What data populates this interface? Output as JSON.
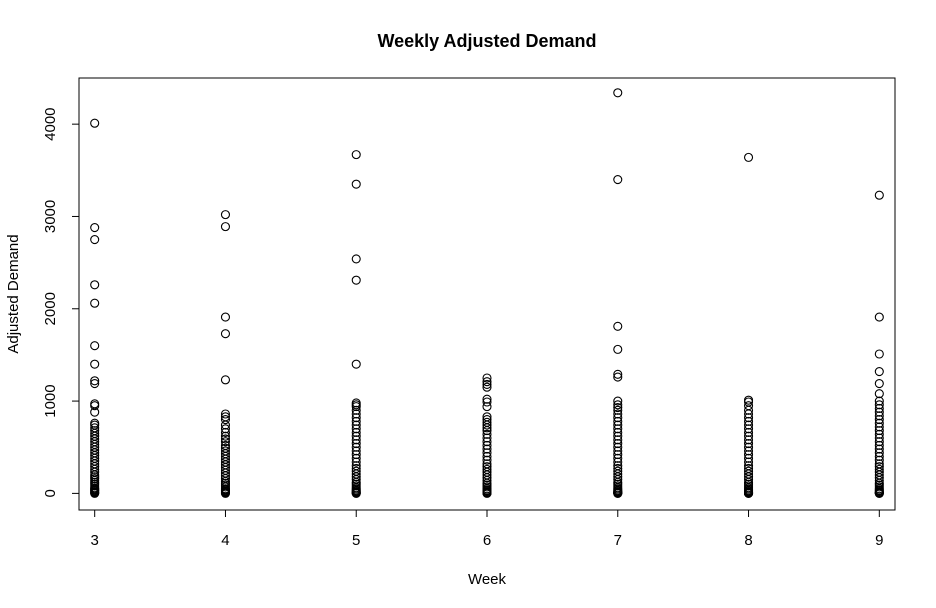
{
  "chart_data": {
    "type": "scatter",
    "title": "Weekly Adjusted Demand",
    "xlabel": "Week",
    "ylabel": "Adjusted Demand",
    "x_ticks": [
      "3",
      "4",
      "5",
      "6",
      "7",
      "8",
      "9"
    ],
    "y_ticks": [
      "0",
      "1000",
      "2000",
      "3000",
      "4000"
    ],
    "xlim": [
      2.88,
      9.12
    ],
    "ylim": [
      -180,
      4500
    ],
    "grid": false,
    "legend": false,
    "series": [
      {
        "x": [
          3,
          3,
          3,
          3,
          3,
          3,
          3,
          3,
          3,
          3,
          3,
          3,
          3,
          3,
          3,
          3,
          3,
          3,
          3,
          3,
          3,
          3,
          3,
          3,
          3,
          3,
          3,
          3,
          3,
          3,
          3,
          3,
          3,
          3,
          3,
          3,
          3,
          3,
          3,
          3,
          3,
          3,
          3,
          3,
          3,
          3,
          4,
          4,
          4,
          4,
          4,
          4,
          4,
          4,
          4,
          4,
          4,
          4,
          4,
          4,
          4,
          4,
          4,
          4,
          4,
          4,
          4,
          4,
          4,
          4,
          4,
          4,
          4,
          4,
          4,
          4,
          4,
          4,
          4,
          4,
          4,
          4,
          4,
          4,
          5,
          5,
          5,
          5,
          5,
          5,
          5,
          5,
          5,
          5,
          5,
          5,
          5,
          5,
          5,
          5,
          5,
          5,
          5,
          5,
          5,
          5,
          5,
          5,
          5,
          5,
          5,
          5,
          5,
          5,
          5,
          5,
          5,
          5,
          5,
          5,
          5,
          5,
          5,
          5,
          6,
          6,
          6,
          6,
          6,
          6,
          6,
          6,
          6,
          6,
          6,
          6,
          6,
          6,
          6,
          6,
          6,
          6,
          6,
          6,
          6,
          6,
          6,
          6,
          6,
          6,
          6,
          6,
          6,
          6,
          6,
          6,
          6,
          6,
          6,
          6,
          6,
          6,
          7,
          7,
          7,
          7,
          7,
          7,
          7,
          7,
          7,
          7,
          7,
          7,
          7,
          7,
          7,
          7,
          7,
          7,
          7,
          7,
          7,
          7,
          7,
          7,
          7,
          7,
          7,
          7,
          7,
          7,
          7,
          7,
          7,
          7,
          7,
          7,
          7,
          7,
          7,
          7,
          7,
          7,
          7,
          8,
          8,
          8,
          8,
          8,
          8,
          8,
          8,
          8,
          8,
          8,
          8,
          8,
          8,
          8,
          8,
          8,
          8,
          8,
          8,
          8,
          8,
          8,
          8,
          8,
          8,
          8,
          8,
          8,
          8,
          8,
          8,
          8,
          8,
          8,
          8,
          8,
          8,
          8,
          9,
          9,
          9,
          9,
          9,
          9,
          9,
          9,
          9,
          9,
          9,
          9,
          9,
          9,
          9,
          9,
          9,
          9,
          9,
          9,
          9,
          9,
          9,
          9,
          9,
          9,
          9,
          9,
          9,
          9,
          9,
          9,
          9,
          9,
          9,
          9,
          9,
          9,
          9,
          9,
          9,
          9
        ],
        "y": [
          4010,
          2880,
          2750,
          2260,
          2060,
          1600,
          1400,
          1220,
          1190,
          970,
          950,
          880,
          760,
          740,
          710,
          680,
          650,
          620,
          590,
          560,
          530,
          500,
          470,
          440,
          410,
          380,
          350,
          320,
          290,
          260,
          230,
          200,
          180,
          160,
          140,
          120,
          100,
          80,
          60,
          50,
          40,
          30,
          20,
          10,
          5,
          0,
          3020,
          2890,
          1910,
          1730,
          1230,
          860,
          830,
          800,
          740,
          700,
          660,
          620,
          590,
          560,
          520,
          490,
          460,
          430,
          400,
          370,
          340,
          310,
          280,
          250,
          220,
          190,
          160,
          130,
          110,
          90,
          70,
          50,
          40,
          30,
          20,
          10,
          5,
          0,
          3670,
          3350,
          2540,
          2310,
          1400,
          980,
          960,
          940,
          900,
          860,
          820,
          780,
          740,
          700,
          660,
          620,
          580,
          540,
          500,
          460,
          420,
          380,
          340,
          300,
          270,
          240,
          210,
          180,
          150,
          120,
          100,
          80,
          60,
          45,
          30,
          20,
          12,
          6,
          2,
          0,
          1250,
          1210,
          1180,
          1150,
          1020,
          990,
          940,
          830,
          800,
          770,
          740,
          710,
          680,
          640,
          600,
          560,
          520,
          480,
          440,
          400,
          360,
          320,
          290,
          260,
          230,
          200,
          170,
          140,
          110,
          90,
          70,
          50,
          35,
          25,
          15,
          8,
          3,
          0,
          4340,
          3400,
          1810,
          1560,
          1290,
          1260,
          1000,
          960,
          930,
          900,
          860,
          820,
          780,
          740,
          700,
          660,
          620,
          580,
          540,
          500,
          460,
          420,
          380,
          340,
          300,
          270,
          240,
          210,
          180,
          150,
          120,
          100,
          80,
          60,
          45,
          30,
          20,
          12,
          8,
          5,
          3,
          1,
          0,
          3640,
          1010,
          990,
          950,
          900,
          860,
          820,
          780,
          740,
          700,
          660,
          620,
          580,
          540,
          500,
          460,
          420,
          380,
          340,
          300,
          270,
          240,
          210,
          180,
          150,
          120,
          100,
          80,
          60,
          45,
          30,
          20,
          12,
          8,
          5,
          3,
          2,
          1,
          0,
          3230,
          1910,
          1510,
          1320,
          1190,
          1080,
          1000,
          960,
          920,
          880,
          840,
          800,
          760,
          720,
          680,
          640,
          600,
          560,
          520,
          480,
          440,
          400,
          360,
          320,
          290,
          260,
          230,
          200,
          170,
          140,
          110,
          90,
          70,
          50,
          35,
          25,
          15,
          10,
          6,
          3,
          1,
          0
        ]
      }
    ]
  }
}
